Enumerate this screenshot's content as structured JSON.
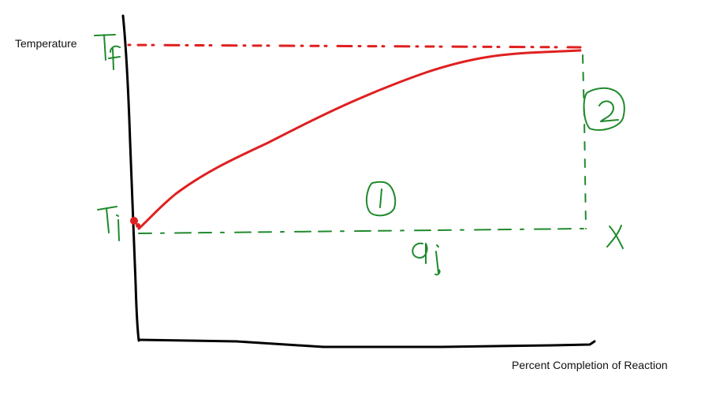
{
  "y_axis_label": "Temperature",
  "x_axis_label": "Percent Completion of Reaction",
  "handwritten": {
    "t_final": "Tf",
    "t_initial": "Ti",
    "step_1": "1",
    "step_2": "2",
    "q_label": "qi",
    "x_label": "X"
  },
  "colors": {
    "axes": "#000000",
    "temperature_curve": "#e02020",
    "construction_lines": "#1f8a2c"
  }
}
